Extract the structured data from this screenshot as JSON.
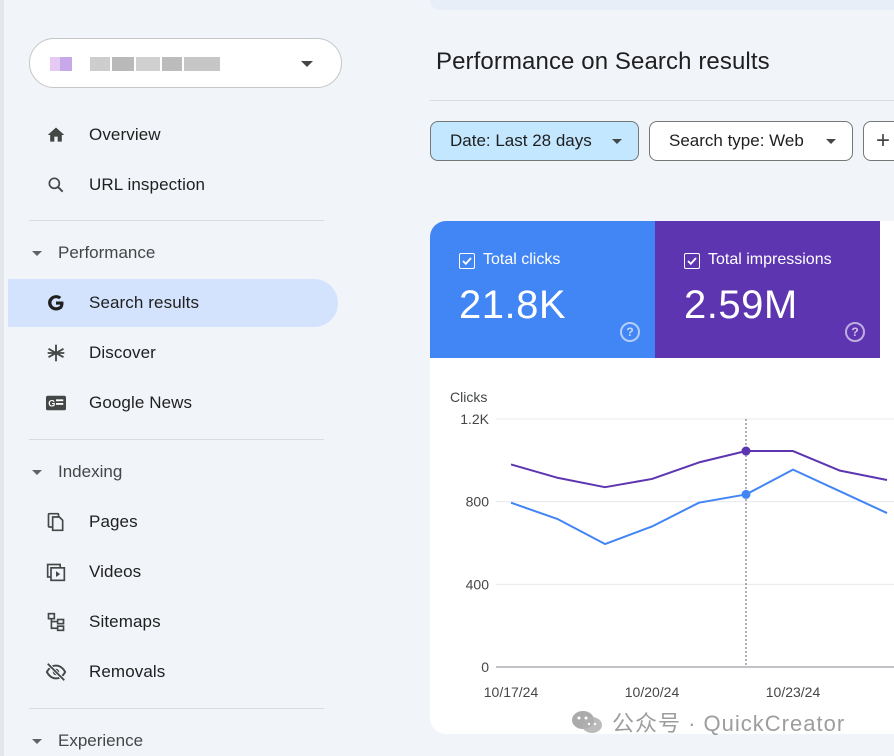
{
  "sidebar": {
    "property_selector": {
      "value": ""
    },
    "nav_top": [
      {
        "label": "Overview",
        "icon": "home-icon"
      },
      {
        "label": "URL inspection",
        "icon": "search-icon"
      }
    ],
    "performance": {
      "label": "Performance",
      "items": [
        {
          "label": "Search results",
          "icon": "google-g-icon",
          "active": true
        },
        {
          "label": "Discover",
          "icon": "asterisk-icon"
        },
        {
          "label": "Google News",
          "icon": "news-icon"
        }
      ]
    },
    "indexing": {
      "label": "Indexing",
      "items": [
        {
          "label": "Pages",
          "icon": "pages-icon"
        },
        {
          "label": "Videos",
          "icon": "video-icon"
        },
        {
          "label": "Sitemaps",
          "icon": "sitemap-icon"
        },
        {
          "label": "Removals",
          "icon": "eye-off-icon"
        }
      ]
    },
    "experience": {
      "label": "Experience"
    }
  },
  "main": {
    "title": "Performance on Search results",
    "filters": {
      "date": "Date: Last 28 days",
      "search_type": "Search type: Web",
      "add": "+"
    },
    "metrics": [
      {
        "label": "Total clicks",
        "value": "21.8K",
        "color": "#4285f4",
        "checked": true
      },
      {
        "label": "Total impressions",
        "value": "2.59M",
        "color": "#5e35b1",
        "checked": true
      }
    ]
  },
  "chart_data": {
    "type": "line",
    "ylabel": "Clicks",
    "y_ticks": [
      "1.2K",
      "800",
      "400",
      "0"
    ],
    "ylim": [
      0,
      1200
    ],
    "x_tick_labels": [
      "10/17/24",
      "10/20/24",
      "10/23/24"
    ],
    "x": [
      "10/17/24",
      "10/18/24",
      "10/19/24",
      "10/20/24",
      "10/21/24",
      "10/22/24",
      "10/23/24",
      "10/24/24",
      "10/25/24"
    ],
    "series": [
      {
        "name": "Total clicks",
        "color": "#4285f4",
        "values": [
          795,
          715,
          595,
          680,
          795,
          835,
          955,
          850,
          745
        ]
      },
      {
        "name": "Total impressions",
        "color": "#5e35b1",
        "values": [
          980,
          915,
          870,
          910,
          990,
          1045,
          1045,
          950,
          905
        ]
      }
    ],
    "highlight_x": "10/22/24",
    "grid": true
  },
  "watermark": {
    "text": "公众号 · QuickCreator"
  }
}
